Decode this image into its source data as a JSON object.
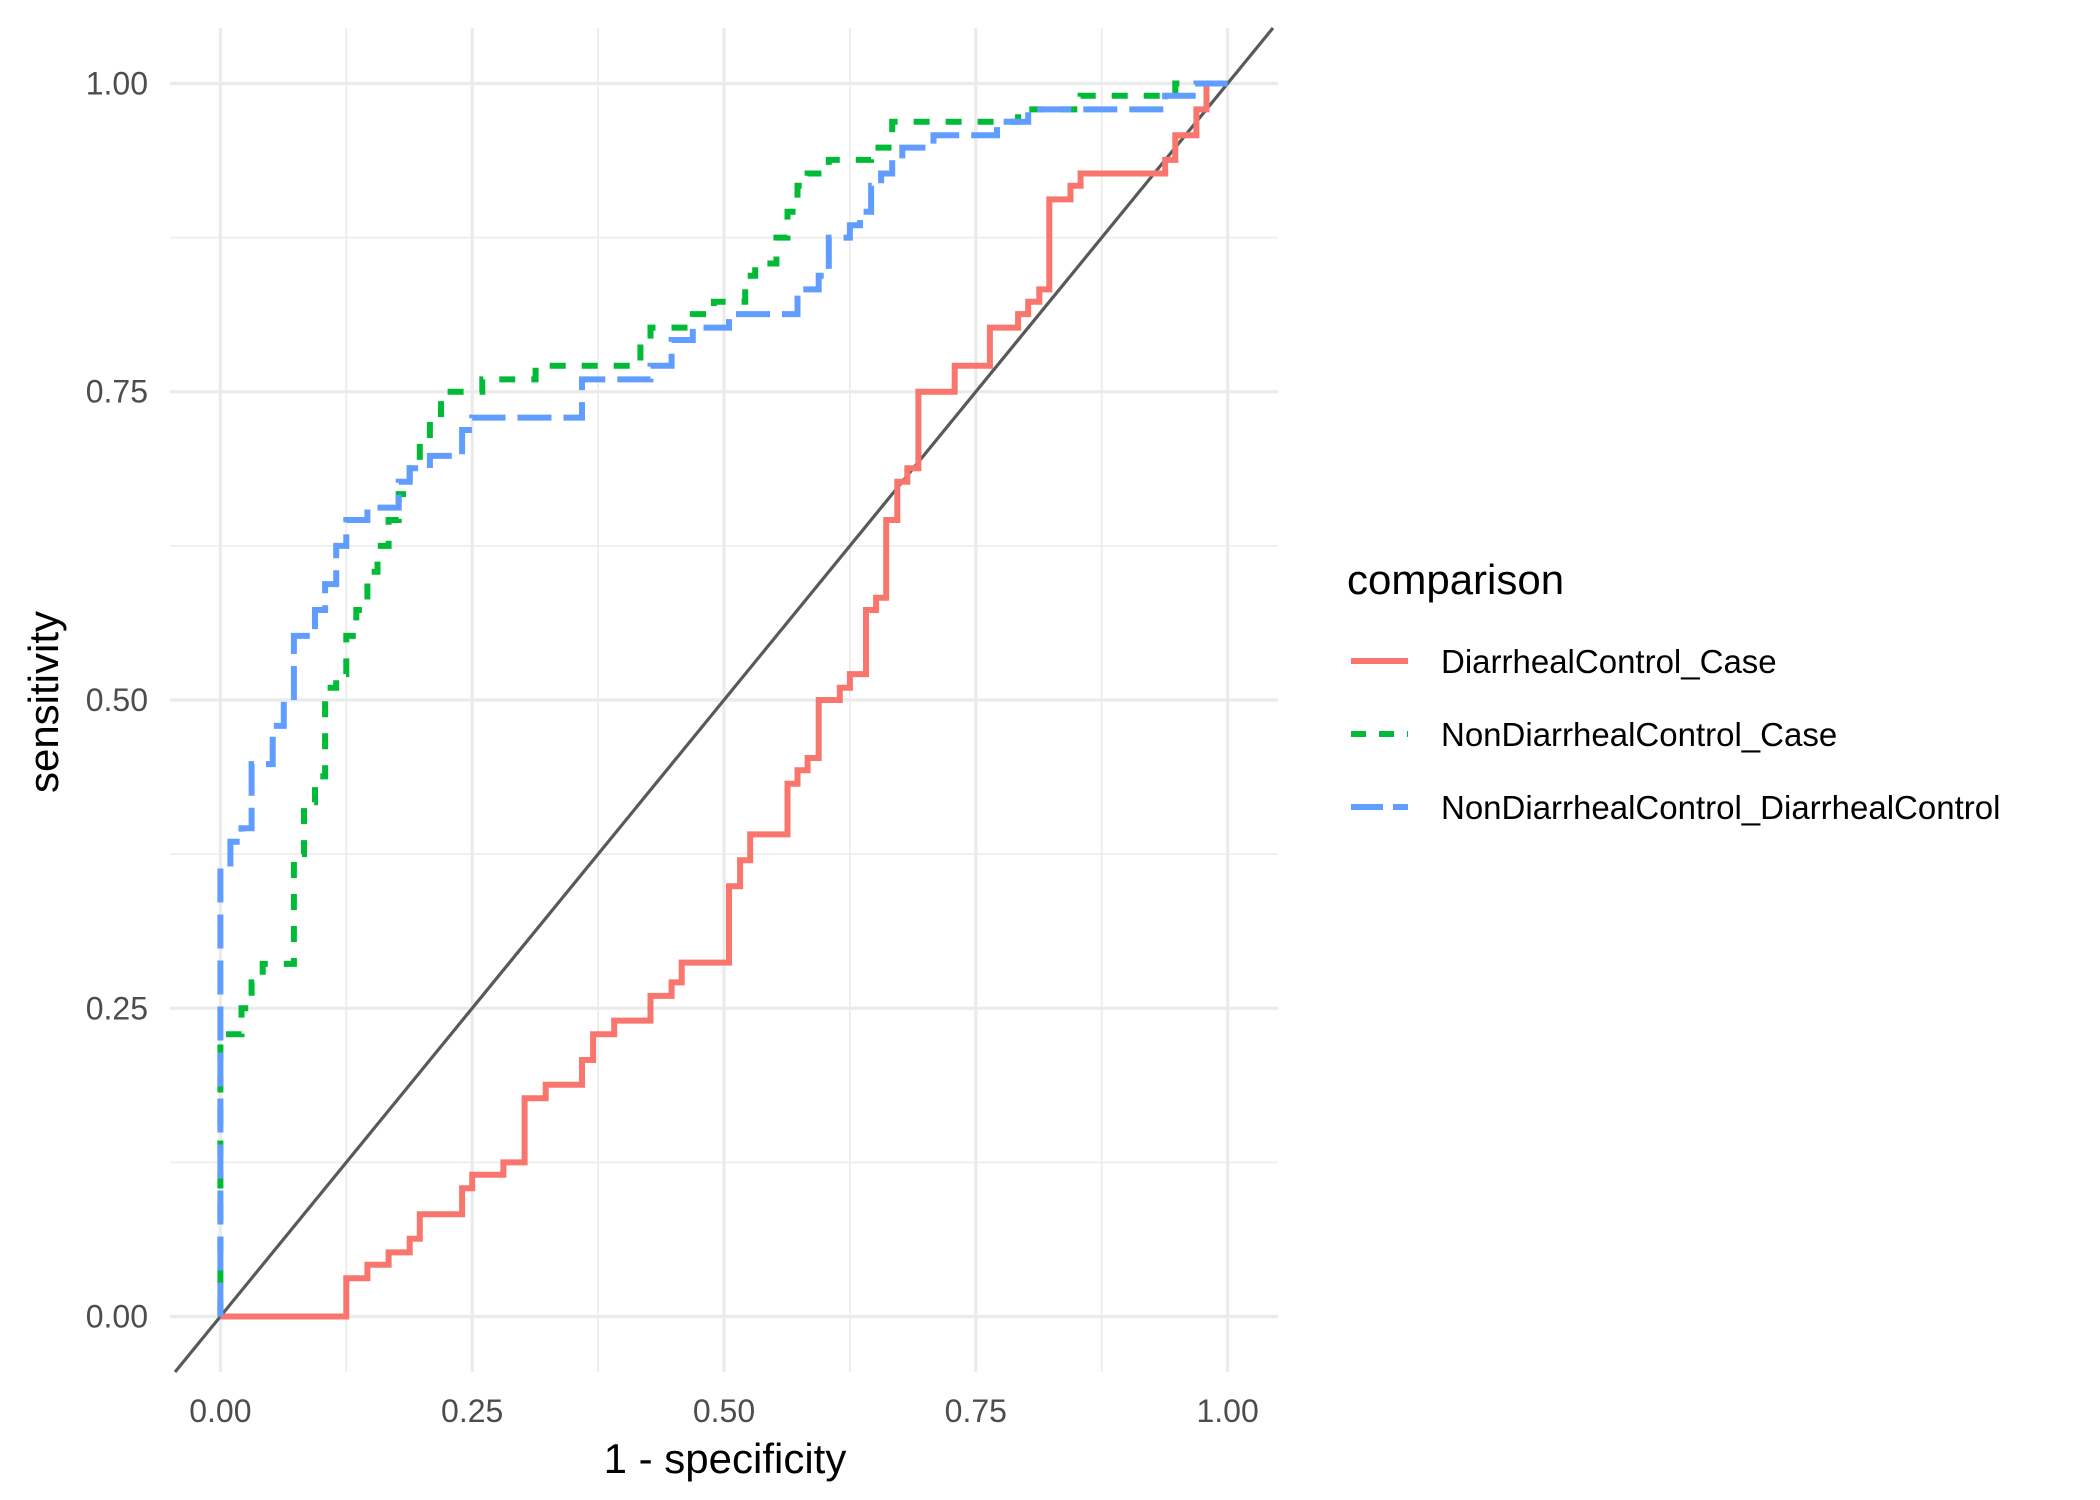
{
  "chart_data": {
    "type": "line",
    "xlabel": "1 - specificity",
    "ylabel": "sensitivity",
    "xlim": [
      -0.05,
      1.05
    ],
    "ylim": [
      -0.045,
      1.045
    ],
    "x_ticks": [
      0.0,
      0.25,
      0.5,
      0.75,
      1.0
    ],
    "x_tick_labels": [
      "0.00",
      "0.25",
      "0.50",
      "0.75",
      "1.00"
    ],
    "y_ticks": [
      0.0,
      0.25,
      0.5,
      0.75,
      1.0
    ],
    "y_tick_labels": [
      "0.00",
      "0.25",
      "0.50",
      "0.75",
      "1.00"
    ],
    "grid": true,
    "legend": {
      "title": "comparison",
      "position": "right"
    },
    "reference_line": {
      "slope": 1,
      "intercept": 0,
      "color": "#595959"
    },
    "series": [
      {
        "name": "DiarrhealControl_Case",
        "color": "#F8766D",
        "dash": "solid",
        "points": [
          [
            0.0,
            0.0
          ],
          [
            0.125,
            0.0
          ],
          [
            0.125,
            0.031
          ],
          [
            0.146,
            0.031
          ],
          [
            0.146,
            0.042
          ],
          [
            0.167,
            0.042
          ],
          [
            0.167,
            0.052
          ],
          [
            0.188,
            0.052
          ],
          [
            0.188,
            0.063
          ],
          [
            0.198,
            0.063
          ],
          [
            0.198,
            0.083
          ],
          [
            0.24,
            0.083
          ],
          [
            0.24,
            0.104
          ],
          [
            0.25,
            0.104
          ],
          [
            0.25,
            0.115
          ],
          [
            0.281,
            0.115
          ],
          [
            0.281,
            0.125
          ],
          [
            0.302,
            0.125
          ],
          [
            0.302,
            0.177
          ],
          [
            0.323,
            0.177
          ],
          [
            0.323,
            0.188
          ],
          [
            0.359,
            0.188
          ],
          [
            0.359,
            0.208
          ],
          [
            0.37,
            0.208
          ],
          [
            0.37,
            0.229
          ],
          [
            0.391,
            0.229
          ],
          [
            0.391,
            0.24
          ],
          [
            0.427,
            0.24
          ],
          [
            0.427,
            0.26
          ],
          [
            0.448,
            0.26
          ],
          [
            0.448,
            0.271
          ],
          [
            0.458,
            0.271
          ],
          [
            0.458,
            0.287
          ],
          [
            0.505,
            0.287
          ],
          [
            0.505,
            0.349
          ],
          [
            0.516,
            0.349
          ],
          [
            0.516,
            0.37
          ],
          [
            0.526,
            0.37
          ],
          [
            0.526,
            0.391
          ],
          [
            0.563,
            0.391
          ],
          [
            0.563,
            0.432
          ],
          [
            0.573,
            0.432
          ],
          [
            0.573,
            0.443
          ],
          [
            0.583,
            0.443
          ],
          [
            0.583,
            0.453
          ],
          [
            0.594,
            0.453
          ],
          [
            0.594,
            0.5
          ],
          [
            0.615,
            0.5
          ],
          [
            0.615,
            0.51
          ],
          [
            0.625,
            0.51
          ],
          [
            0.625,
            0.521
          ],
          [
            0.641,
            0.521
          ],
          [
            0.641,
            0.573
          ],
          [
            0.651,
            0.573
          ],
          [
            0.651,
            0.583
          ],
          [
            0.661,
            0.583
          ],
          [
            0.661,
            0.646
          ],
          [
            0.672,
            0.646
          ],
          [
            0.672,
            0.677
          ],
          [
            0.682,
            0.677
          ],
          [
            0.682,
            0.688
          ],
          [
            0.693,
            0.688
          ],
          [
            0.693,
            0.75
          ],
          [
            0.729,
            0.75
          ],
          [
            0.729,
            0.771
          ],
          [
            0.764,
            0.771
          ],
          [
            0.764,
            0.802
          ],
          [
            0.792,
            0.802
          ],
          [
            0.792,
            0.813
          ],
          [
            0.802,
            0.813
          ],
          [
            0.802,
            0.823
          ],
          [
            0.813,
            0.823
          ],
          [
            0.813,
            0.833
          ],
          [
            0.823,
            0.833
          ],
          [
            0.823,
            0.906
          ],
          [
            0.844,
            0.906
          ],
          [
            0.844,
            0.917
          ],
          [
            0.854,
            0.917
          ],
          [
            0.854,
            0.927
          ],
          [
            0.938,
            0.927
          ],
          [
            0.938,
            0.938
          ],
          [
            0.948,
            0.938
          ],
          [
            0.948,
            0.958
          ],
          [
            0.969,
            0.958
          ],
          [
            0.969,
            0.979
          ],
          [
            0.979,
            0.979
          ],
          [
            0.979,
            1.0
          ],
          [
            1.0,
            1.0
          ]
        ]
      },
      {
        "name": "NonDiarrhealControl_Case",
        "color": "#00BA38",
        "dash": "dashed",
        "points": [
          [
            0.0,
            0.0
          ],
          [
            0.0,
            0.229
          ],
          [
            0.021,
            0.229
          ],
          [
            0.021,
            0.25
          ],
          [
            0.031,
            0.25
          ],
          [
            0.031,
            0.271
          ],
          [
            0.042,
            0.271
          ],
          [
            0.042,
            0.286
          ],
          [
            0.073,
            0.286
          ],
          [
            0.073,
            0.375
          ],
          [
            0.083,
            0.375
          ],
          [
            0.083,
            0.417
          ],
          [
            0.094,
            0.417
          ],
          [
            0.094,
            0.438
          ],
          [
            0.104,
            0.438
          ],
          [
            0.104,
            0.51
          ],
          [
            0.115,
            0.51
          ],
          [
            0.115,
            0.521
          ],
          [
            0.125,
            0.521
          ],
          [
            0.125,
            0.552
          ],
          [
            0.135,
            0.552
          ],
          [
            0.135,
            0.573
          ],
          [
            0.146,
            0.573
          ],
          [
            0.146,
            0.604
          ],
          [
            0.156,
            0.604
          ],
          [
            0.156,
            0.625
          ],
          [
            0.167,
            0.625
          ],
          [
            0.167,
            0.646
          ],
          [
            0.177,
            0.646
          ],
          [
            0.177,
            0.667
          ],
          [
            0.188,
            0.667
          ],
          [
            0.188,
            0.688
          ],
          [
            0.198,
            0.688
          ],
          [
            0.198,
            0.708
          ],
          [
            0.208,
            0.708
          ],
          [
            0.208,
            0.729
          ],
          [
            0.219,
            0.729
          ],
          [
            0.219,
            0.75
          ],
          [
            0.26,
            0.75
          ],
          [
            0.26,
            0.76
          ],
          [
            0.313,
            0.76
          ],
          [
            0.313,
            0.771
          ],
          [
            0.417,
            0.771
          ],
          [
            0.417,
            0.792
          ],
          [
            0.427,
            0.792
          ],
          [
            0.427,
            0.802
          ],
          [
            0.469,
            0.802
          ],
          [
            0.469,
            0.813
          ],
          [
            0.49,
            0.813
          ],
          [
            0.49,
            0.823
          ],
          [
            0.521,
            0.823
          ],
          [
            0.521,
            0.844
          ],
          [
            0.531,
            0.844
          ],
          [
            0.531,
            0.854
          ],
          [
            0.552,
            0.854
          ],
          [
            0.552,
            0.875
          ],
          [
            0.563,
            0.875
          ],
          [
            0.563,
            0.896
          ],
          [
            0.573,
            0.896
          ],
          [
            0.573,
            0.917
          ],
          [
            0.583,
            0.917
          ],
          [
            0.583,
            0.927
          ],
          [
            0.604,
            0.927
          ],
          [
            0.604,
            0.938
          ],
          [
            0.646,
            0.938
          ],
          [
            0.646,
            0.948
          ],
          [
            0.667,
            0.948
          ],
          [
            0.667,
            0.969
          ],
          [
            0.792,
            0.969
          ],
          [
            0.792,
            0.979
          ],
          [
            0.854,
            0.979
          ],
          [
            0.854,
            0.99
          ],
          [
            0.948,
            0.99
          ],
          [
            0.948,
            1.0
          ],
          [
            1.0,
            1.0
          ]
        ]
      },
      {
        "name": "NonDiarrhealControl_DiarrhealControl",
        "color": "#619CFF",
        "dash": "longdash",
        "points": [
          [
            0.0,
            0.0
          ],
          [
            0.0,
            0.365
          ],
          [
            0.01,
            0.365
          ],
          [
            0.01,
            0.385
          ],
          [
            0.021,
            0.385
          ],
          [
            0.021,
            0.396
          ],
          [
            0.031,
            0.396
          ],
          [
            0.031,
            0.448
          ],
          [
            0.052,
            0.448
          ],
          [
            0.052,
            0.479
          ],
          [
            0.063,
            0.479
          ],
          [
            0.063,
            0.5
          ],
          [
            0.073,
            0.5
          ],
          [
            0.073,
            0.552
          ],
          [
            0.094,
            0.552
          ],
          [
            0.094,
            0.573
          ],
          [
            0.104,
            0.573
          ],
          [
            0.104,
            0.594
          ],
          [
            0.115,
            0.594
          ],
          [
            0.115,
            0.625
          ],
          [
            0.125,
            0.625
          ],
          [
            0.125,
            0.646
          ],
          [
            0.146,
            0.646
          ],
          [
            0.146,
            0.656
          ],
          [
            0.177,
            0.656
          ],
          [
            0.177,
            0.677
          ],
          [
            0.188,
            0.677
          ],
          [
            0.188,
            0.688
          ],
          [
            0.208,
            0.688
          ],
          [
            0.208,
            0.698
          ],
          [
            0.24,
            0.698
          ],
          [
            0.24,
            0.719
          ],
          [
            0.25,
            0.719
          ],
          [
            0.25,
            0.729
          ],
          [
            0.359,
            0.729
          ],
          [
            0.359,
            0.76
          ],
          [
            0.427,
            0.76
          ],
          [
            0.427,
            0.771
          ],
          [
            0.448,
            0.771
          ],
          [
            0.448,
            0.792
          ],
          [
            0.469,
            0.792
          ],
          [
            0.469,
            0.802
          ],
          [
            0.505,
            0.802
          ],
          [
            0.505,
            0.813
          ],
          [
            0.573,
            0.813
          ],
          [
            0.573,
            0.833
          ],
          [
            0.594,
            0.833
          ],
          [
            0.594,
            0.844
          ],
          [
            0.604,
            0.844
          ],
          [
            0.604,
            0.875
          ],
          [
            0.625,
            0.875
          ],
          [
            0.625,
            0.885
          ],
          [
            0.635,
            0.885
          ],
          [
            0.635,
            0.896
          ],
          [
            0.646,
            0.896
          ],
          [
            0.646,
            0.917
          ],
          [
            0.656,
            0.917
          ],
          [
            0.656,
            0.927
          ],
          [
            0.667,
            0.927
          ],
          [
            0.667,
            0.938
          ],
          [
            0.677,
            0.938
          ],
          [
            0.677,
            0.948
          ],
          [
            0.708,
            0.948
          ],
          [
            0.708,
            0.958
          ],
          [
            0.771,
            0.958
          ],
          [
            0.771,
            0.969
          ],
          [
            0.802,
            0.969
          ],
          [
            0.802,
            0.979
          ],
          [
            0.938,
            0.979
          ],
          [
            0.938,
            0.99
          ],
          [
            0.969,
            0.99
          ],
          [
            0.969,
            1.0
          ],
          [
            1.0,
            1.0
          ]
        ]
      }
    ]
  }
}
